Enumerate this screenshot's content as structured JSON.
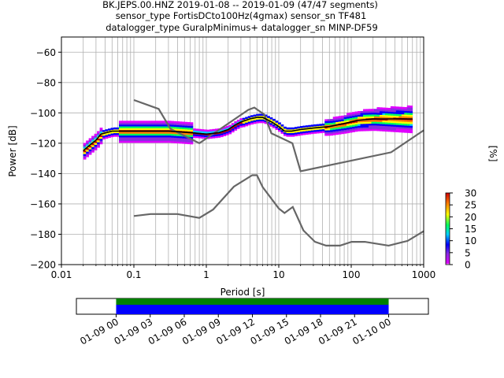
{
  "chart_data": [
    {
      "type": "heatmap",
      "title": "BK.JEPS.00.HNZ   2019-01-08 -- 2019-01-09  (47/47 segments)",
      "subtitle_lines": [
        "sensor_type FortisDCto100Hz(4gmax) sensor_sn TF481",
        "datalogger_type GuralpMinimus+ datalogger_sn MINP-DF59"
      ],
      "xlabel": "Period [s]",
      "ylabel": "Power [dB]",
      "xscale": "log",
      "xlim": [
        0.01,
        1000
      ],
      "ylim": [
        -200,
        -50
      ],
      "xticks": [
        {
          "v": 0.01,
          "label": "0.01"
        },
        {
          "v": 0.1,
          "label": "0.1"
        },
        {
          "v": 1,
          "label": "1"
        },
        {
          "v": 10,
          "label": "10"
        },
        {
          "v": 100,
          "label": "100"
        },
        {
          "v": 1000,
          "label": "1000"
        }
      ],
      "yticks": [
        {
          "v": -60,
          "label": "−60"
        },
        {
          "v": -80,
          "label": "−80"
        },
        {
          "v": -100,
          "label": "−100"
        },
        {
          "v": -120,
          "label": "−120"
        },
        {
          "v": -140,
          "label": "−140"
        },
        {
          "v": -160,
          "label": "−160"
        },
        {
          "v": -180,
          "label": "−180"
        },
        {
          "v": -200,
          "label": "−200"
        }
      ],
      "grid": true,
      "noise_models": {
        "color": "#666666",
        "nhnm": [
          [
            0.1,
            -91.5
          ],
          [
            0.22,
            -97.4
          ],
          [
            0.32,
            -110.5
          ],
          [
            0.8,
            -120
          ],
          [
            3.8,
            -98
          ],
          [
            4.6,
            -96.5
          ],
          [
            6.3,
            -101
          ],
          [
            7.9,
            -113.5
          ],
          [
            15.4,
            -120
          ],
          [
            20,
            -138.5
          ],
          [
            354.8,
            -126
          ],
          [
            1000,
            -111.5
          ]
        ],
        "nlnm": [
          [
            0.1,
            -168
          ],
          [
            0.17,
            -166.7
          ],
          [
            0.4,
            -166.7
          ],
          [
            0.8,
            -169.2
          ],
          [
            1.24,
            -163.7
          ],
          [
            2.4,
            -148.6
          ],
          [
            4.3,
            -141.1
          ],
          [
            5.0,
            -141.1
          ],
          [
            6.0,
            -149
          ],
          [
            10,
            -163
          ],
          [
            12,
            -166
          ],
          [
            15.6,
            -162
          ],
          [
            21.9,
            -177.5
          ],
          [
            31.6,
            -185
          ],
          [
            45,
            -187.5
          ],
          [
            70,
            -187.5
          ],
          [
            101,
            -185
          ],
          [
            154,
            -185
          ],
          [
            328,
            -187.5
          ],
          [
            600,
            -184.4
          ],
          [
            1000,
            -178
          ]
        ]
      },
      "mode_line": [
        [
          0.02,
          -125
        ],
        [
          0.025,
          -121
        ],
        [
          0.03,
          -118
        ],
        [
          0.035,
          -114
        ],
        [
          0.05,
          -112
        ],
        [
          0.08,
          -112
        ],
        [
          0.15,
          -112
        ],
        [
          0.3,
          -112
        ],
        [
          0.6,
          -113
        ],
        [
          1,
          -114
        ],
        [
          1.5,
          -113
        ],
        [
          2,
          -111
        ],
        [
          2.5,
          -108
        ],
        [
          3,
          -106
        ],
        [
          4,
          -104
        ],
        [
          5,
          -103
        ],
        [
          6,
          -103
        ],
        [
          8,
          -106
        ],
        [
          10,
          -109
        ],
        [
          12,
          -112
        ],
        [
          15,
          -112
        ],
        [
          20,
          -111
        ],
        [
          30,
          -110
        ],
        [
          50,
          -109
        ],
        [
          80,
          -107
        ],
        [
          120,
          -105
        ],
        [
          200,
          -104
        ],
        [
          400,
          -104
        ],
        [
          700,
          -104
        ]
      ],
      "colorbar": {
        "label": "[%]",
        "min": 0,
        "max": 30,
        "ticks": [
          0,
          5,
          10,
          15,
          20,
          25,
          30
        ]
      }
    },
    {
      "type": "bar",
      "title": "",
      "xlabel": "",
      "ylabel": "",
      "coverage_rows": [
        {
          "color": "#008000",
          "start": "01-09 00",
          "end": "01-10 00"
        },
        {
          "color": "#0000ff",
          "start": "01-09 00",
          "end": "01-10 00"
        }
      ],
      "xlim_hours": [
        -3.5,
        27.5
      ],
      "xticks": [
        {
          "h": 0,
          "label": "01-09 00"
        },
        {
          "h": 3,
          "label": "01-09 03"
        },
        {
          "h": 6,
          "label": "01-09 06"
        },
        {
          "h": 9,
          "label": "01-09 09"
        },
        {
          "h": 12,
          "label": "01-09 12"
        },
        {
          "h": 15,
          "label": "01-09 15"
        },
        {
          "h": 18,
          "label": "01-09 18"
        },
        {
          "h": 21,
          "label": "01-09 21"
        },
        {
          "h": 24,
          "label": "01-10 00"
        }
      ]
    }
  ]
}
